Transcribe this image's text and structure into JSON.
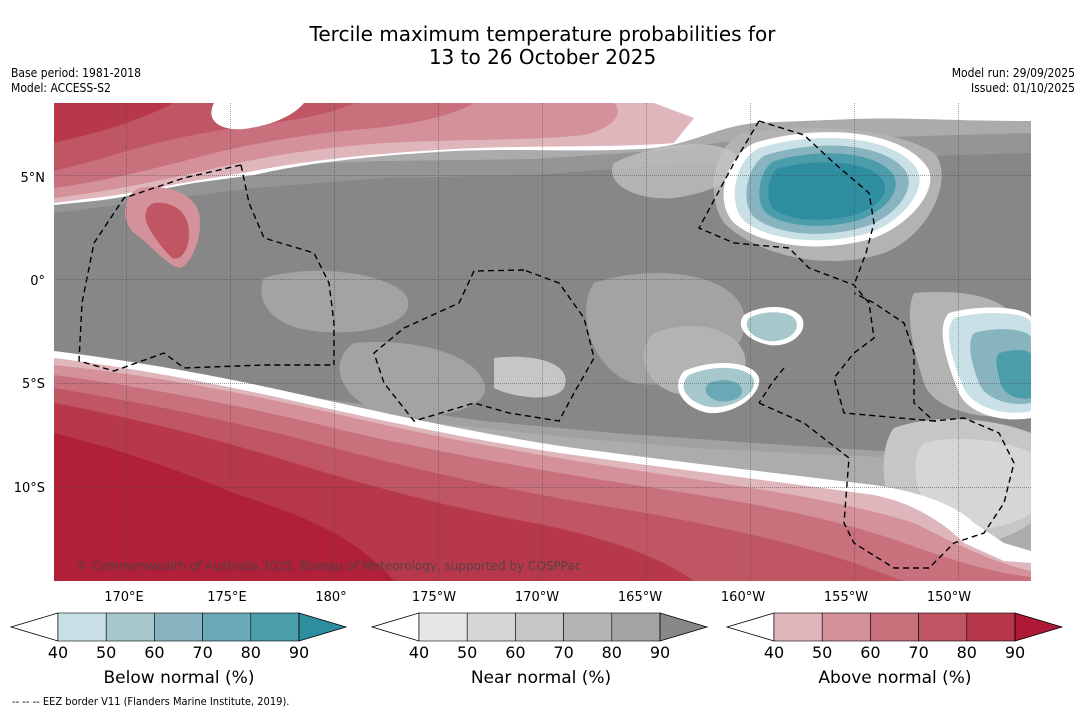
{
  "title": {
    "line1": "Tercile maximum temperature probabilities for",
    "line2": "13 to 26 October 2025"
  },
  "info": {
    "base_period": "Base period: 1981-2018",
    "model": "Model: ACCESS-S2",
    "model_run": "Model run: 29/09/2025",
    "issued": "Issued: 01/10/2025"
  },
  "map": {
    "copyright": "© Commonwealth of Australia 2025, Bureau of Meteorology, supported by COSPPac",
    "lat_labels": [
      "5°N",
      "0°",
      "5°S",
      "10°S"
    ],
    "lon_labels": [
      "170°E",
      "175°E",
      "180°",
      "175°W",
      "170°W",
      "165°W",
      "160°W",
      "155°W",
      "150°W"
    ],
    "lon_range": [
      166.5,
      213.5
    ],
    "lat_range": [
      -14.5,
      8.5
    ],
    "regions": [
      "Below normal",
      "Near normal",
      "Above normal"
    ]
  },
  "legend": {
    "ticks": [
      "40",
      "50",
      "60",
      "70",
      "80",
      "90"
    ],
    "below": {
      "label": "Below normal (%)",
      "colors": [
        "#ffffff",
        "#c9e1e6",
        "#a6c8cd",
        "#88b4bf",
        "#6aaab6",
        "#4b9dac",
        "#2f8da0"
      ]
    },
    "near": {
      "label": "Near normal (%)",
      "colors": [
        "#ffffff",
        "#e6e6e6",
        "#d6d6d6",
        "#c6c6c6",
        "#b3b3b3",
        "#a3a3a3",
        "#878787"
      ]
    },
    "above": {
      "label": "Above normal (%)",
      "colors": [
        "#ffffff",
        "#deb6bb",
        "#d4919a",
        "#c8707c",
        "#c05563",
        "#b8384b",
        "#ae1a35"
      ]
    }
  },
  "footer": "-- -- -- EEZ border V11 (Flanders Marine Institute, 2019)."
}
